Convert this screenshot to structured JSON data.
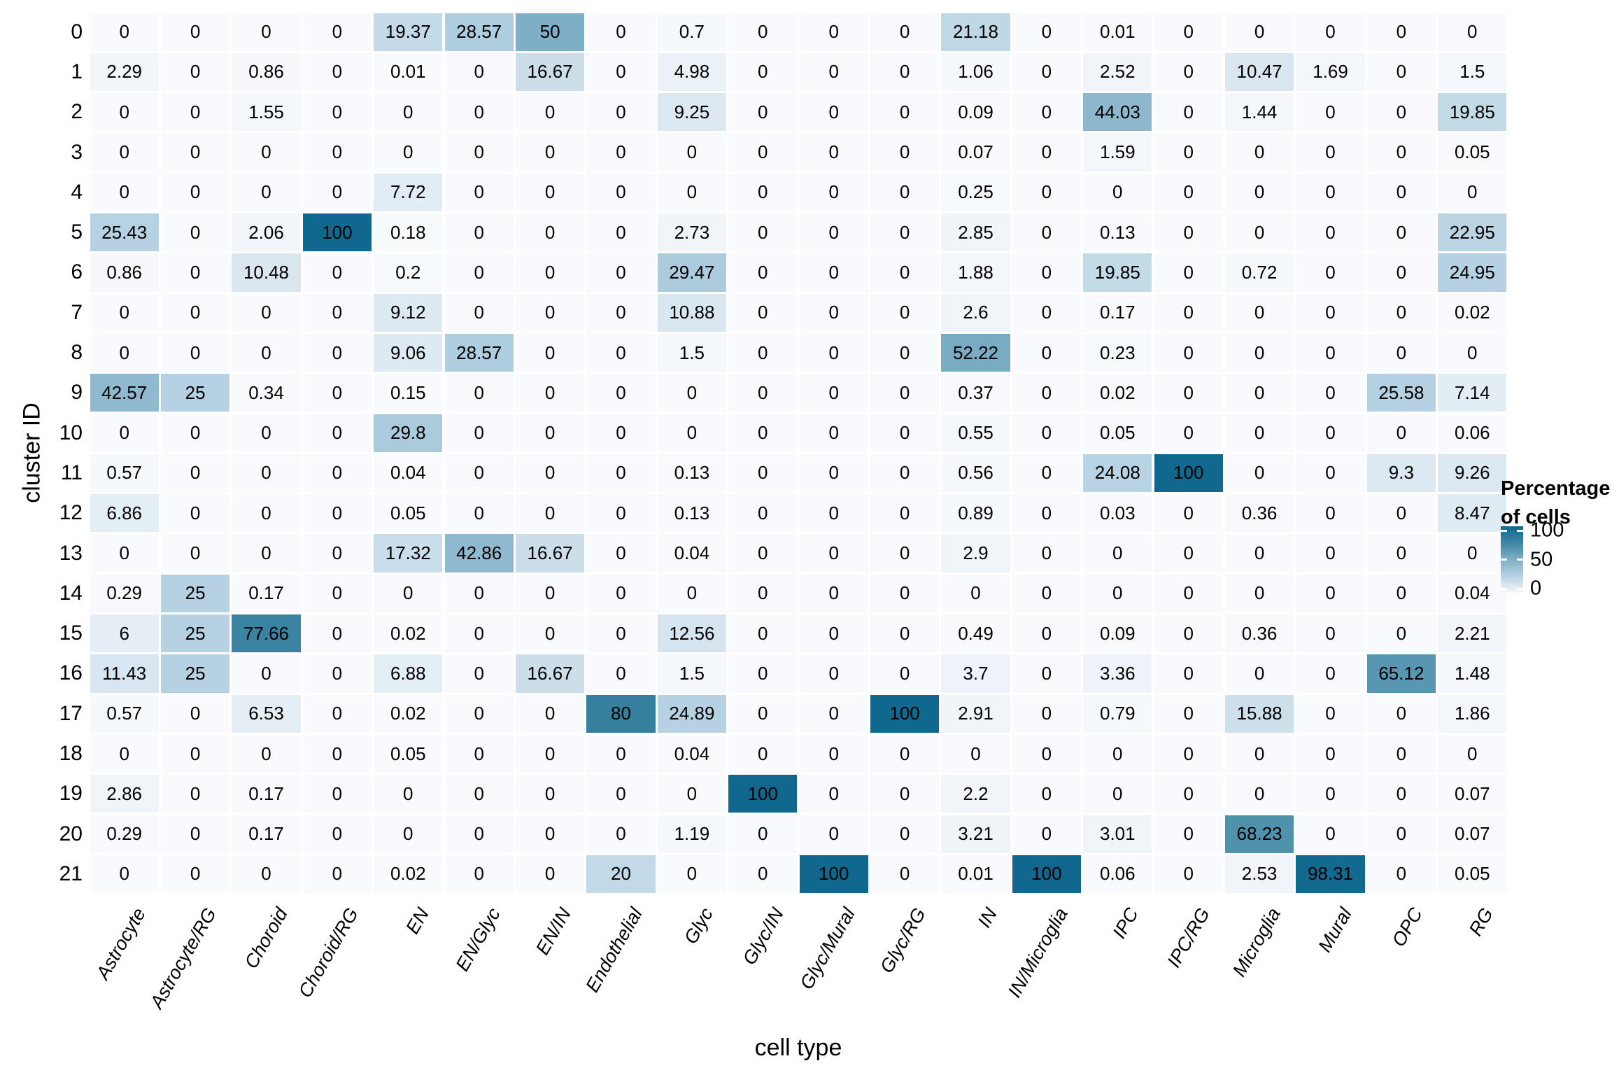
{
  "chart_data": {
    "type": "heatmap",
    "xlabel": "cell type",
    "ylabel": "cluster ID",
    "legend": {
      "title_line1": "Percentage",
      "title_line2": "of cells",
      "ticks": [
        "100",
        "50",
        "0"
      ]
    },
    "columns": [
      "Astrocyte",
      "Astrocyte/RG",
      "Choroid",
      "Choroid/RG",
      "EN",
      "EN/Glyc",
      "EN/IN",
      "Endothelial",
      "Glyc",
      "Glyc/IN",
      "Glyc/Mural",
      "Glyc/RG",
      "IN",
      "IN/Microglia",
      "IPC",
      "IPC/RG",
      "Microglia",
      "Mural",
      "OPC",
      "RG"
    ],
    "rows": [
      "0",
      "1",
      "2",
      "3",
      "4",
      "5",
      "6",
      "7",
      "8",
      "9",
      "10",
      "11",
      "12",
      "13",
      "14",
      "15",
      "16",
      "17",
      "18",
      "19",
      "20",
      "21"
    ],
    "values": [
      [
        "0",
        "0",
        "0",
        "0",
        "19.37",
        "28.57",
        "50",
        "0",
        "0.7",
        "0",
        "0",
        "0",
        "21.18",
        "0",
        "0.01",
        "0",
        "0",
        "0",
        "0",
        "0"
      ],
      [
        "2.29",
        "0",
        "0.86",
        "0",
        "0.01",
        "0",
        "16.67",
        "0",
        "4.98",
        "0",
        "0",
        "0",
        "1.06",
        "0",
        "2.52",
        "0",
        "10.47",
        "1.69",
        "0",
        "1.5"
      ],
      [
        "0",
        "0",
        "1.55",
        "0",
        "0",
        "0",
        "0",
        "0",
        "9.25",
        "0",
        "0",
        "0",
        "0.09",
        "0",
        "44.03",
        "0",
        "1.44",
        "0",
        "0",
        "19.85"
      ],
      [
        "0",
        "0",
        "0",
        "0",
        "0",
        "0",
        "0",
        "0",
        "0",
        "0",
        "0",
        "0",
        "0.07",
        "0",
        "1.59",
        "0",
        "0",
        "0",
        "0",
        "0.05"
      ],
      [
        "0",
        "0",
        "0",
        "0",
        "7.72",
        "0",
        "0",
        "0",
        "0",
        "0",
        "0",
        "0",
        "0.25",
        "0",
        "0",
        "0",
        "0",
        "0",
        "0",
        "0"
      ],
      [
        "25.43",
        "0",
        "2.06",
        "100",
        "0.18",
        "0",
        "0",
        "0",
        "2.73",
        "0",
        "0",
        "0",
        "2.85",
        "0",
        "0.13",
        "0",
        "0",
        "0",
        "0",
        "22.95"
      ],
      [
        "0.86",
        "0",
        "10.48",
        "0",
        "0.2",
        "0",
        "0",
        "0",
        "29.47",
        "0",
        "0",
        "0",
        "1.88",
        "0",
        "19.85",
        "0",
        "0.72",
        "0",
        "0",
        "24.95"
      ],
      [
        "0",
        "0",
        "0",
        "0",
        "9.12",
        "0",
        "0",
        "0",
        "10.88",
        "0",
        "0",
        "0",
        "2.6",
        "0",
        "0.17",
        "0",
        "0",
        "0",
        "0",
        "0.02"
      ],
      [
        "0",
        "0",
        "0",
        "0",
        "9.06",
        "28.57",
        "0",
        "0",
        "1.5",
        "0",
        "0",
        "0",
        "52.22",
        "0",
        "0.23",
        "0",
        "0",
        "0",
        "0",
        "0"
      ],
      [
        "42.57",
        "25",
        "0.34",
        "0",
        "0.15",
        "0",
        "0",
        "0",
        "0",
        "0",
        "0",
        "0",
        "0.37",
        "0",
        "0.02",
        "0",
        "0",
        "0",
        "25.58",
        "7.14"
      ],
      [
        "0",
        "0",
        "0",
        "0",
        "29.8",
        "0",
        "0",
        "0",
        "0",
        "0",
        "0",
        "0",
        "0.55",
        "0",
        "0.05",
        "0",
        "0",
        "0",
        "0",
        "0.06"
      ],
      [
        "0.57",
        "0",
        "0",
        "0",
        "0.04",
        "0",
        "0",
        "0",
        "0.13",
        "0",
        "0",
        "0",
        "0.56",
        "0",
        "24.08",
        "100",
        "0",
        "0",
        "9.3",
        "9.26"
      ],
      [
        "6.86",
        "0",
        "0",
        "0",
        "0.05",
        "0",
        "0",
        "0",
        "0.13",
        "0",
        "0",
        "0",
        "0.89",
        "0",
        "0.03",
        "0",
        "0.36",
        "0",
        "0",
        "8.47"
      ],
      [
        "0",
        "0",
        "0",
        "0",
        "17.32",
        "42.86",
        "16.67",
        "0",
        "0.04",
        "0",
        "0",
        "0",
        "2.9",
        "0",
        "0",
        "0",
        "0",
        "0",
        "0",
        "0"
      ],
      [
        "0.29",
        "25",
        "0.17",
        "0",
        "0",
        "0",
        "0",
        "0",
        "0",
        "0",
        "0",
        "0",
        "0",
        "0",
        "0",
        "0",
        "0",
        "0",
        "0",
        "0.04"
      ],
      [
        "6",
        "25",
        "77.66",
        "0",
        "0.02",
        "0",
        "0",
        "0",
        "12.56",
        "0",
        "0",
        "0",
        "0.49",
        "0",
        "0.09",
        "0",
        "0.36",
        "0",
        "0",
        "2.21"
      ],
      [
        "11.43",
        "25",
        "0",
        "0",
        "6.88",
        "0",
        "16.67",
        "0",
        "1.5",
        "0",
        "0",
        "0",
        "3.7",
        "0",
        "3.36",
        "0",
        "0",
        "0",
        "65.12",
        "1.48"
      ],
      [
        "0.57",
        "0",
        "6.53",
        "0",
        "0.02",
        "0",
        "0",
        "80",
        "24.89",
        "0",
        "0",
        "100",
        "2.91",
        "0",
        "0.79",
        "0",
        "15.88",
        "0",
        "0",
        "1.86"
      ],
      [
        "0",
        "0",
        "0",
        "0",
        "0.05",
        "0",
        "0",
        "0",
        "0.04",
        "0",
        "0",
        "0",
        "0",
        "0",
        "0",
        "0",
        "0",
        "0",
        "0",
        "0"
      ],
      [
        "2.86",
        "0",
        "0.17",
        "0",
        "0",
        "0",
        "0",
        "0",
        "0",
        "100",
        "0",
        "0",
        "2.2",
        "0",
        "0",
        "0",
        "0",
        "0",
        "0",
        "0.07"
      ],
      [
        "0.29",
        "0",
        "0.17",
        "0",
        "0",
        "0",
        "0",
        "0",
        "1.19",
        "0",
        "0",
        "0",
        "3.21",
        "0",
        "3.01",
        "0",
        "68.23",
        "0",
        "0",
        "0.07"
      ],
      [
        "0",
        "0",
        "0",
        "0",
        "0.02",
        "0",
        "0",
        "20",
        "0",
        "0",
        "100",
        "0",
        "0.01",
        "100",
        "0.06",
        "0",
        "2.53",
        "98.31",
        "0",
        "0.05"
      ]
    ],
    "colors": {
      "scale_stops": [
        {
          "v": 0,
          "rgb": [
            248,
            250,
            253
          ]
        },
        {
          "v": 10,
          "rgb": [
            219,
            232,
            241
          ]
        },
        {
          "v": 25,
          "rgb": [
            182,
            210,
            226
          ]
        },
        {
          "v": 50,
          "rgb": [
            127,
            175,
            198
          ]
        },
        {
          "v": 75,
          "rgb": [
            63,
            134,
            163
          ]
        },
        {
          "v": 100,
          "rgb": [
            16,
            104,
            142
          ]
        }
      ],
      "text": "#000000",
      "background": "#ffffff"
    },
    "layout_hints": {
      "grid": "white gaps between tiles",
      "legend_position": "right"
    }
  }
}
